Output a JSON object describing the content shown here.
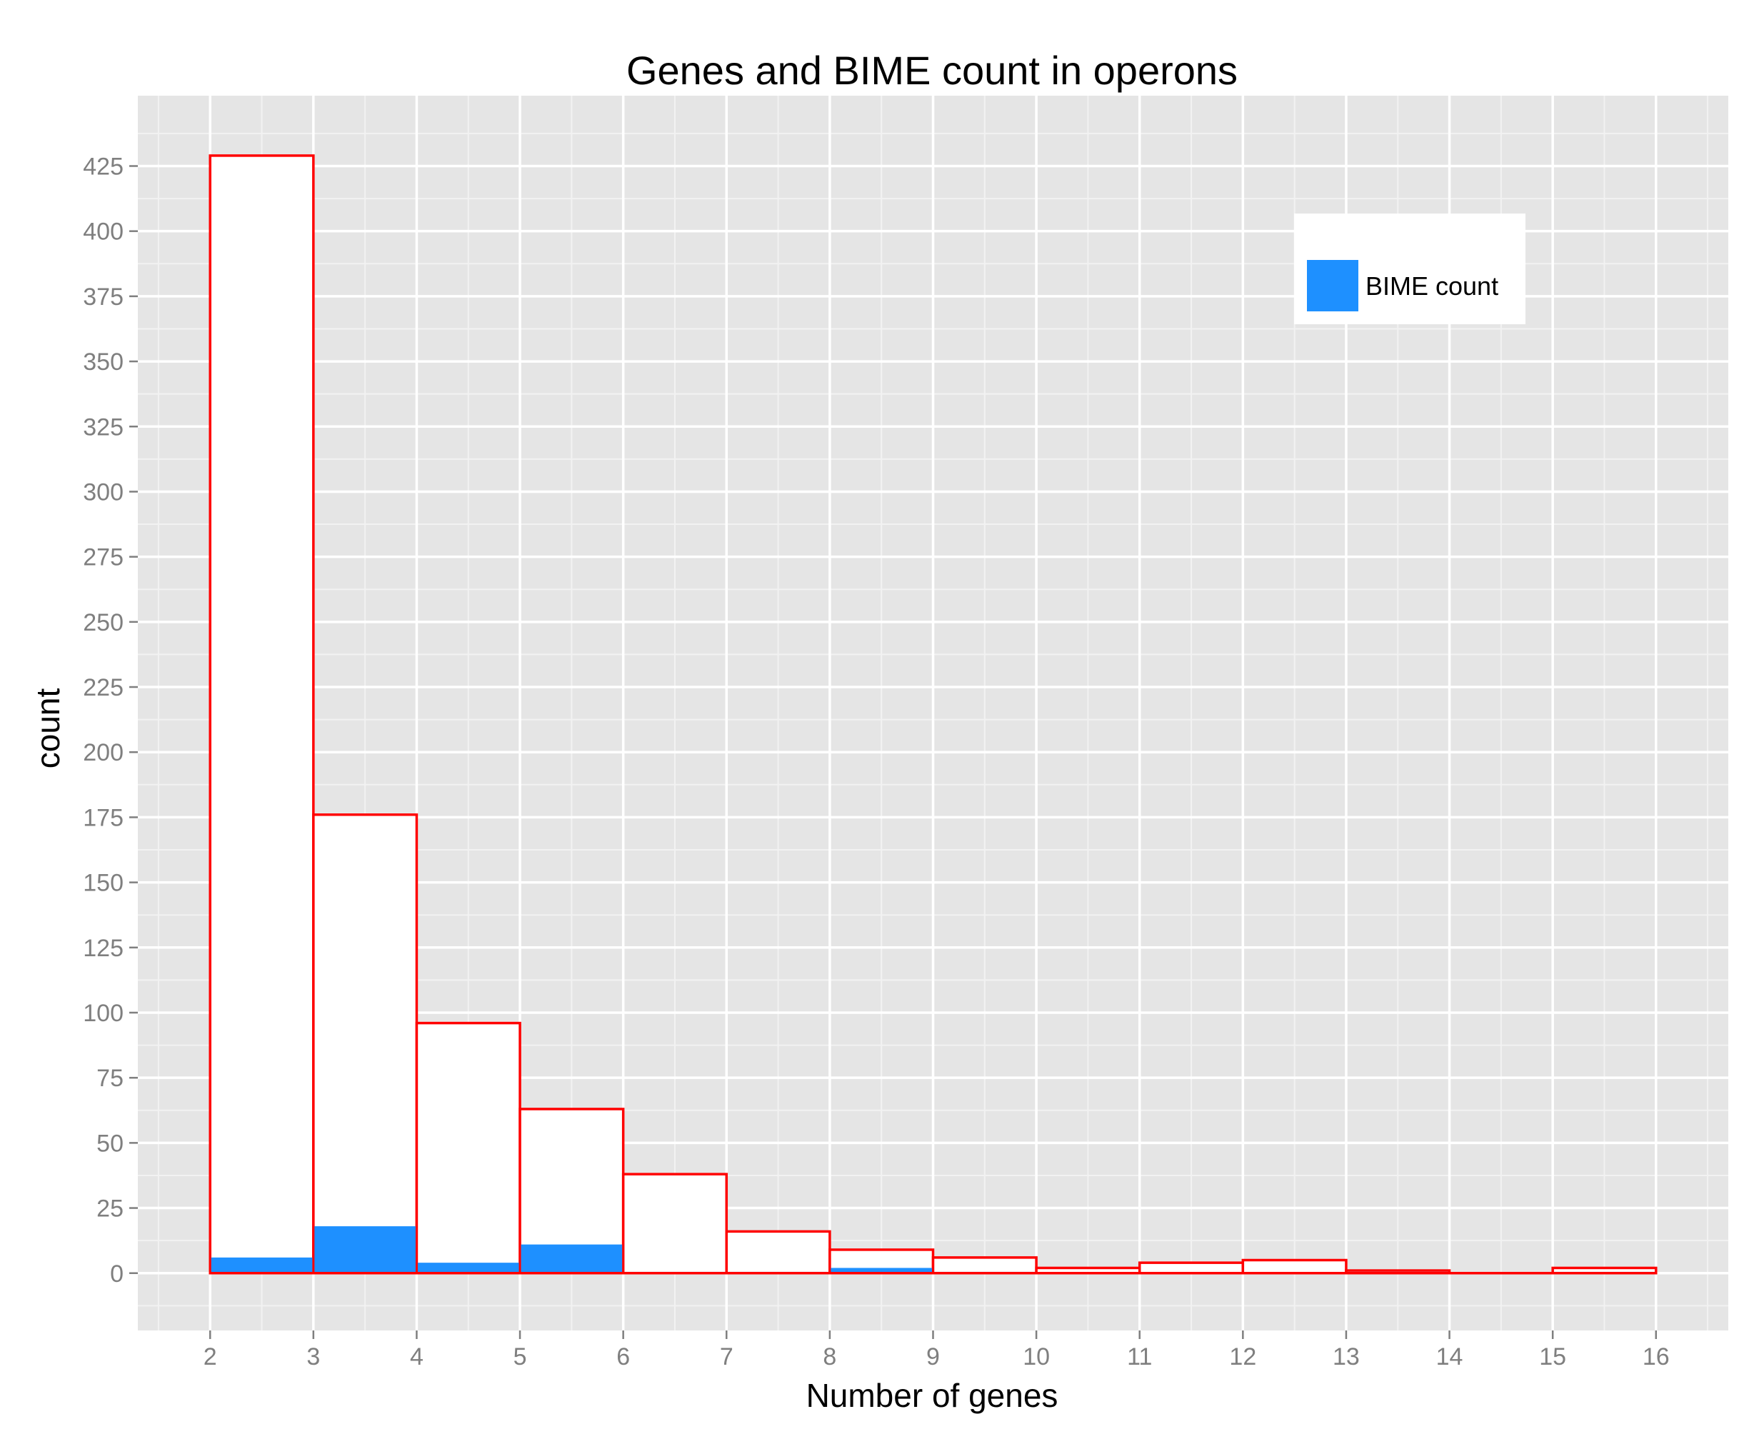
{
  "chart_data": {
    "type": "bar",
    "title": "Genes and BIME count in operons",
    "xlabel": "Number of genes",
    "ylabel": "count",
    "xlim": [
      1.3,
      16.7
    ],
    "ylim": [
      -22,
      452
    ],
    "x_ticks": [
      2,
      3,
      4,
      5,
      6,
      7,
      8,
      9,
      10,
      11,
      12,
      13,
      14,
      15,
      16
    ],
    "y_ticks": [
      0,
      25,
      50,
      75,
      100,
      125,
      150,
      175,
      200,
      225,
      250,
      275,
      300,
      325,
      350,
      375,
      400,
      425
    ],
    "grid": true,
    "legend": {
      "position": "top-right",
      "entries": [
        {
          "label": "BIME count",
          "color": "#1E90FF"
        }
      ]
    },
    "series": [
      {
        "kind": "outline-histogram",
        "fill": "#FFFFFF",
        "stroke": "#FF0000",
        "bins": [
          {
            "x0": 2,
            "x1": 3,
            "value": 429
          },
          {
            "x0": 3,
            "x1": 4,
            "value": 176
          },
          {
            "x0": 4,
            "x1": 5,
            "value": 96
          },
          {
            "x0": 5,
            "x1": 6,
            "value": 63
          },
          {
            "x0": 6,
            "x1": 7,
            "value": 38
          },
          {
            "x0": 7,
            "x1": 8,
            "value": 16
          },
          {
            "x0": 8,
            "x1": 9,
            "value": 9
          },
          {
            "x0": 9,
            "x1": 10,
            "value": 6
          },
          {
            "x0": 10,
            "x1": 11,
            "value": 2
          },
          {
            "x0": 11,
            "x1": 12,
            "value": 4
          },
          {
            "x0": 12,
            "x1": 13,
            "value": 5
          },
          {
            "x0": 13,
            "x1": 14,
            "value": 1
          },
          {
            "x0": 14,
            "x1": 15,
            "value": 0
          },
          {
            "x0": 15,
            "x1": 16,
            "value": 2
          }
        ]
      },
      {
        "name": "BIME count",
        "kind": "filled-histogram",
        "fill": "#1E90FF",
        "bins": [
          {
            "x0": 2,
            "x1": 3,
            "value": 6
          },
          {
            "x0": 3,
            "x1": 4,
            "value": 18
          },
          {
            "x0": 4,
            "x1": 5,
            "value": 4
          },
          {
            "x0": 5,
            "x1": 6,
            "value": 11
          },
          {
            "x0": 6,
            "x1": 7,
            "value": 0.5
          },
          {
            "x0": 7,
            "x1": 8,
            "value": 0.5
          },
          {
            "x0": 8,
            "x1": 9,
            "value": 2
          },
          {
            "x0": 9,
            "x1": 10,
            "value": 0.5
          },
          {
            "x0": 10,
            "x1": 11,
            "value": 0
          },
          {
            "x0": 11,
            "x1": 12,
            "value": 0
          },
          {
            "x0": 12,
            "x1": 13,
            "value": 0
          },
          {
            "x0": 13,
            "x1": 14,
            "value": 0.5
          },
          {
            "x0": 14,
            "x1": 15,
            "value": 0
          },
          {
            "x0": 15,
            "x1": 16,
            "value": 0.5
          }
        ]
      }
    ]
  }
}
